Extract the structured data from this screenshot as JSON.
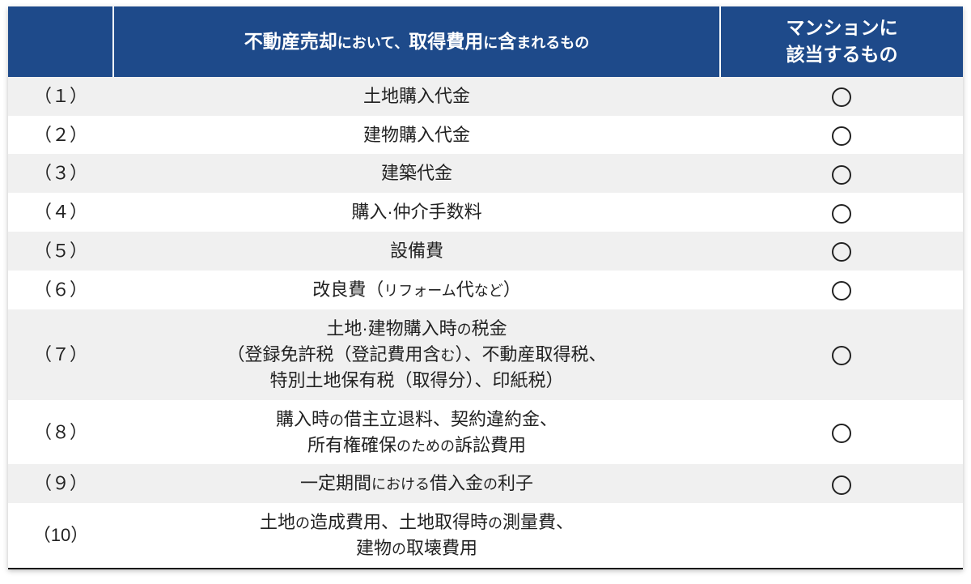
{
  "table": {
    "header": {
      "col_num": "",
      "col_desc_html": "不動産売却<span class='small'>において、</span>取得費用<span class='small'>に</span>含<span class='small'>まれるもの</span>",
      "col_mark": "マンションに\n該当するもの"
    },
    "rows": [
      {
        "num": "（１）",
        "desc": "土地購入代金",
        "mark": true
      },
      {
        "num": "（２）",
        "desc": "建物購入代金",
        "mark": true
      },
      {
        "num": "（３）",
        "desc": "建築代金",
        "mark": true
      },
      {
        "num": "（４）",
        "desc": "購入·仲介手数料",
        "mark": true
      },
      {
        "num": "（５）",
        "desc": "設備費",
        "mark": true
      },
      {
        "num": "（６）",
        "desc": "改良費（<span class='sm'>リフォーム</span>代<span class='sm'>など</span>）",
        "mark": true
      },
      {
        "num": "（７）",
        "desc": "土地·建物購入時<span class='sm'>の</span>税金\n（登録免許税（登記費用含<span class='sm'>む</span>）、不動産取得税、\n特別土地保有税（取得分）、印紙税）",
        "mark": true
      },
      {
        "num": "（８）",
        "desc": "購入時<span class='sm'>の</span>借主立退料、契約違約金、\n所有権確保<span class='sm'>のための</span>訴訟費用",
        "mark": true
      },
      {
        "num": "（９）",
        "desc": "一定期間<span class='sm'>における</span>借入金<span class='sm'>の</span>利子",
        "mark": true
      },
      {
        "num": "（10）",
        "desc": "土地<span class='sm'>の</span>造成費用、土地取得時<span class='sm'>の</span>測量費、\n建物<span class='sm'>の</span>取壊費用",
        "mark": false
      }
    ],
    "colors": {
      "header_bg": "#1e4a8a",
      "header_text": "#ffffff",
      "row_odd_bg": "#f0f0f0",
      "row_even_bg": "#ffffff",
      "text_color": "#222222",
      "border_bottom": "#1a1a1a"
    },
    "column_widths": {
      "num": 130,
      "desc": 750,
      "mark": 300
    },
    "font_sizes": {
      "header": 23,
      "header_small": 18,
      "body": 22,
      "body_small": 18
    }
  }
}
